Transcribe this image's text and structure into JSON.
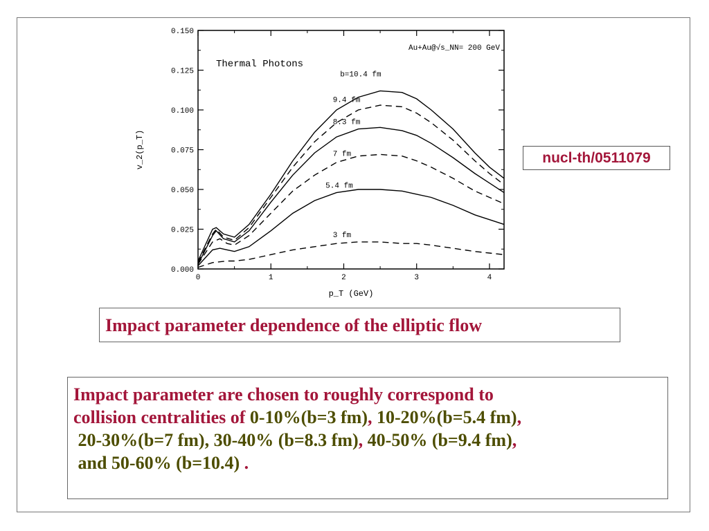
{
  "chart_data": {
    "type": "line",
    "annotation_label": "Thermal Photons",
    "system_label": "Au+Au@√s_NN= 200 GeV",
    "xlabel": "p_T (GeV)",
    "ylabel": "v_2(p_T)",
    "xlim": [
      0,
      4.2
    ],
    "ylim": [
      0,
      0.15
    ],
    "xticks": [
      {
        "value": 0,
        "label": "0"
      },
      {
        "value": 1,
        "label": "1"
      },
      {
        "value": 2,
        "label": "2"
      },
      {
        "value": 3,
        "label": "3"
      },
      {
        "value": 4,
        "label": "4"
      }
    ],
    "yticks": [
      {
        "value": 0,
        "label": "0.000"
      },
      {
        "value": 0.025,
        "label": "0.025"
      },
      {
        "value": 0.05,
        "label": "0.050"
      },
      {
        "value": 0.075,
        "label": "0.075"
      },
      {
        "value": 0.1,
        "label": "0.100"
      },
      {
        "value": 0.125,
        "label": "0.125"
      },
      {
        "value": 0.15,
        "label": "0.150"
      }
    ],
    "series": [
      {
        "name": "b=10.4 fm",
        "dash": "solid",
        "label_at": [
          1.95,
          0.121
        ],
        "x": [
          0,
          0.1,
          0.2,
          0.25,
          0.35,
          0.5,
          0.7,
          1.0,
          1.3,
          1.6,
          1.9,
          2.2,
          2.5,
          2.8,
          3.0,
          3.2,
          3.5,
          3.8,
          4.0,
          4.2
        ],
        "y": [
          0.005,
          0.015,
          0.025,
          0.026,
          0.022,
          0.02,
          0.028,
          0.047,
          0.068,
          0.086,
          0.1,
          0.108,
          0.112,
          0.111,
          0.107,
          0.1,
          0.088,
          0.073,
          0.064,
          0.057
        ]
      },
      {
        "name": "9.4 fm",
        "dash": "dash",
        "label_at": [
          1.85,
          0.105
        ],
        "x": [
          0,
          0.1,
          0.2,
          0.25,
          0.35,
          0.5,
          0.7,
          1.0,
          1.3,
          1.6,
          1.9,
          2.2,
          2.5,
          2.8,
          3.0,
          3.2,
          3.5,
          3.8,
          4.0,
          4.2
        ],
        "y": [
          0.004,
          0.013,
          0.022,
          0.025,
          0.02,
          0.018,
          0.026,
          0.045,
          0.064,
          0.08,
          0.092,
          0.1,
          0.103,
          0.102,
          0.098,
          0.092,
          0.081,
          0.068,
          0.06,
          0.053
        ]
      },
      {
        "name": "8.3 fm",
        "dash": "solid",
        "label_at": [
          1.85,
          0.091
        ],
        "x": [
          0,
          0.1,
          0.2,
          0.25,
          0.35,
          0.5,
          0.7,
          1.0,
          1.3,
          1.6,
          1.9,
          2.2,
          2.5,
          2.8,
          3.0,
          3.2,
          3.5,
          3.8,
          4.0,
          4.2
        ],
        "y": [
          0.003,
          0.012,
          0.021,
          0.024,
          0.019,
          0.017,
          0.024,
          0.042,
          0.059,
          0.073,
          0.083,
          0.088,
          0.089,
          0.087,
          0.084,
          0.079,
          0.07,
          0.06,
          0.054,
          0.048
        ]
      },
      {
        "name": "7 fm",
        "dash": "dash",
        "label_at": [
          1.85,
          0.071
        ],
        "x": [
          0,
          0.1,
          0.2,
          0.3,
          0.4,
          0.5,
          0.7,
          1.0,
          1.3,
          1.6,
          1.9,
          2.2,
          2.5,
          2.8,
          3.0,
          3.2,
          3.5,
          3.8,
          4.0,
          4.2
        ],
        "y": [
          0.003,
          0.01,
          0.017,
          0.019,
          0.016,
          0.015,
          0.021,
          0.035,
          0.049,
          0.059,
          0.067,
          0.071,
          0.072,
          0.071,
          0.068,
          0.064,
          0.057,
          0.049,
          0.045,
          0.041
        ]
      },
      {
        "name": "5.4 fm",
        "dash": "solid",
        "label_at": [
          1.75,
          0.051
        ],
        "x": [
          0,
          0.1,
          0.2,
          0.3,
          0.4,
          0.5,
          0.7,
          1.0,
          1.3,
          1.6,
          1.9,
          2.2,
          2.5,
          2.8,
          3.0,
          3.2,
          3.5,
          3.8,
          4.0,
          4.2
        ],
        "y": [
          0.002,
          0.007,
          0.012,
          0.013,
          0.012,
          0.011,
          0.014,
          0.024,
          0.035,
          0.043,
          0.048,
          0.05,
          0.05,
          0.049,
          0.047,
          0.045,
          0.04,
          0.034,
          0.031,
          0.028
        ]
      },
      {
        "name": "3 fm",
        "dash": "dash",
        "label_at": [
          1.85,
          0.02
        ],
        "x": [
          0,
          0.2,
          0.4,
          0.5,
          0.7,
          1.0,
          1.3,
          1.6,
          1.9,
          2.2,
          2.5,
          2.8,
          3.0,
          3.2,
          3.5,
          3.8,
          4.0,
          4.2
        ],
        "y": [
          0.001,
          0.004,
          0.005,
          0.005,
          0.006,
          0.009,
          0.012,
          0.014,
          0.016,
          0.017,
          0.017,
          0.016,
          0.016,
          0.015,
          0.013,
          0.011,
          0.01,
          0.009
        ]
      }
    ]
  },
  "reference": "nucl-th/0511079",
  "caption": "Impact parameter dependence of the elliptic flow",
  "note": {
    "line1": "Impact parameter are chosen to roughly correspond to",
    "line2_lead": "collision centralities of",
    "r1": "0-10%(b=3 fm)",
    "r2": "10-20%(b=5.4 fm)",
    "r3": "20-30%(b=7 fm)",
    "r4": "30-40% (b=8.3 fm)",
    "r5": "40-50% (b=9.4 fm)",
    "r6": "and 50-60% (b=10.4)",
    "comma": ",",
    "period": "."
  }
}
